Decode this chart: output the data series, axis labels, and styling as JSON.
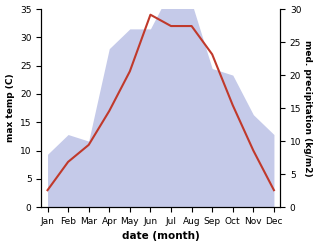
{
  "months": [
    "Jan",
    "Feb",
    "Mar",
    "Apr",
    "May",
    "Jun",
    "Jul",
    "Aug",
    "Sep",
    "Oct",
    "Nov",
    "Dec"
  ],
  "temperature": [
    3,
    8,
    11,
    17,
    24,
    34,
    32,
    32,
    27,
    18,
    10,
    3
  ],
  "precipitation": [
    8,
    11,
    10,
    24,
    27,
    27,
    33,
    31,
    21,
    20,
    14,
    11
  ],
  "temp_color": "#c0392b",
  "precip_color_fill": "#c5cae9",
  "temp_ylim": [
    0,
    35
  ],
  "precip_ylim": [
    0,
    30
  ],
  "temp_yticks": [
    0,
    5,
    10,
    15,
    20,
    25,
    30,
    35
  ],
  "precip_yticks": [
    0,
    5,
    10,
    15,
    20,
    25,
    30
  ],
  "xlabel": "date (month)",
  "ylabel_left": "max temp (C)",
  "ylabel_right": "med. precipitation (kg/m2)",
  "fig_width": 3.18,
  "fig_height": 2.47,
  "dpi": 100
}
